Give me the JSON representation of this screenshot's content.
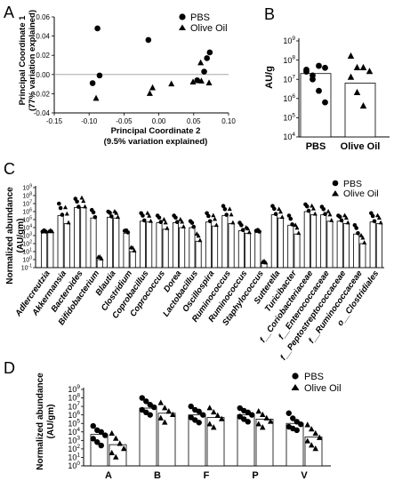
{
  "chart_data": [
    {
      "panel": "A",
      "type": "scatter",
      "xlabel": "Principal Coordinate 2",
      "xlabel2": "(9.5% variation explained)",
      "ylabel": "Principal Coordinate 1",
      "ylabel2": "(77% variation explained)",
      "xlim": [
        -0.15,
        0.1
      ],
      "ylim": [
        -0.04,
        0.06
      ],
      "xticks": [
        "-0.15",
        "-0.10",
        "-0.05",
        "0.00",
        "0.05",
        "0.10"
      ],
      "yticks": [
        "-0.04",
        "-0.02",
        "0.00",
        "0.02",
        "0.04",
        "0.06"
      ],
      "legend": "top-right",
      "series": [
        {
          "name": "PBS",
          "marker": "circle",
          "points": [
            [
              -0.088,
              0.048
            ],
            [
              -0.085,
              -0.001
            ],
            [
              -0.095,
              -0.009
            ],
            [
              -0.015,
              0.036
            ],
            [
              0.055,
              -0.006
            ],
            [
              0.065,
              0.003
            ],
            [
              0.069,
              0.017
            ],
            [
              0.073,
              0.023
            ]
          ]
        },
        {
          "name": "Olive Oil",
          "marker": "triangle",
          "points": [
            [
              -0.09,
              -0.025
            ],
            [
              -0.013,
              -0.02
            ],
            [
              -0.009,
              -0.014
            ],
            [
              0.018,
              -0.01
            ],
            [
              0.049,
              -0.008
            ],
            [
              0.061,
              -0.007
            ],
            [
              0.072,
              -0.009
            ],
            [
              0.06,
              0.012
            ]
          ]
        }
      ]
    },
    {
      "panel": "B",
      "type": "bar",
      "ylabel": "AU/g",
      "log": true,
      "ylim_exp": [
        4,
        9
      ],
      "categories": [
        "PBS",
        "Olive Oil"
      ],
      "legend": "none",
      "series": [
        {
          "name": "PBS",
          "marker": "circle",
          "bar_exp": 7.3,
          "points_exp": [
            7.4,
            7.2,
            7.7,
            7.6,
            7.5,
            7.0,
            6.4,
            5.8
          ]
        },
        {
          "name": "Olive Oil",
          "marker": "triangle",
          "bar_exp": 6.8,
          "points_exp": [
            8.2,
            7.6,
            7.6,
            7.4,
            7.1,
            6.3,
            5.6
          ]
        }
      ]
    },
    {
      "panel": "C",
      "type": "bar",
      "ylabel": "Normalized abundance",
      "ylabel2": "(AU/gm)",
      "log": true,
      "ylim_exp": [
        -1,
        9
      ],
      "legend": "top-right",
      "series_names": [
        "PBS",
        "Olive Oil"
      ],
      "categories": [
        "Adlercreutzia",
        "Akkermansia",
        "Bacteroides",
        "Bifidobacterium",
        "Blautia",
        "Clostridium",
        "Coprobacillus",
        "Coprococcus",
        "Dorea",
        "Lactobacillus",
        "Oscillospira",
        "Ruminococcus",
        "Ruminococcus",
        "Staphylococcus",
        "Sutterella",
        "Turicibacter",
        "f__Coriobacteriaceae",
        "f__Enterococcaceae",
        "f__Peptostreptococcaceae",
        "f__Ruminococcaceae",
        "o__Clostridiales"
      ],
      "bars_exp": [
        [
          3.4,
          3.4
        ],
        [
          5.5,
          4.5
        ],
        [
          6.5,
          6.5
        ],
        [
          5.2,
          0
        ],
        [
          5.3,
          5.2
        ],
        [
          3.3,
          1.0
        ],
        [
          4.8,
          4.7
        ],
        [
          4.6,
          3.8
        ],
        [
          4.6,
          4.0
        ],
        [
          4.0,
          2.3
        ],
        [
          4.7,
          4.2
        ],
        [
          5.5,
          4.5
        ],
        [
          3.6,
          3.3
        ],
        [
          3.4,
          -0.5
        ],
        [
          5.6,
          5.2
        ],
        [
          4.3,
          3.2
        ],
        [
          6.0,
          5.6
        ],
        [
          5.6,
          4.8
        ],
        [
          4.8,
          4.5
        ],
        [
          3.2,
          2.0
        ],
        [
          4.7,
          4.5
        ]
      ],
      "tops_exp": [
        [
          3.5,
          3.5
        ],
        [
          7.0,
          6.5
        ],
        [
          7.6,
          7.7
        ],
        [
          6.2,
          0.3
        ],
        [
          6.0,
          6.0
        ],
        [
          3.6,
          1.5
        ],
        [
          5.8,
          5.8
        ],
        [
          5.5,
          5.0
        ],
        [
          5.5,
          5.0
        ],
        [
          4.8,
          3.2
        ],
        [
          5.8,
          5.5
        ],
        [
          6.7,
          6.3
        ],
        [
          4.6,
          4.0
        ],
        [
          3.6,
          -0.3
        ],
        [
          6.7,
          6.3
        ],
        [
          5.5,
          4.3
        ],
        [
          6.9,
          6.7
        ],
        [
          6.6,
          6.0
        ],
        [
          5.5,
          5.5
        ],
        [
          4.3,
          3.0
        ],
        [
          5.8,
          5.5
        ]
      ]
    },
    {
      "panel": "D",
      "type": "bar",
      "ylabel": "Normalized abundance",
      "ylabel2": "(AU/gm)",
      "log": true,
      "ylim_exp": [
        0,
        9
      ],
      "legend": "top-right",
      "categories": [
        "A",
        "B",
        "F",
        "P",
        "V"
      ],
      "series": [
        {
          "name": "PBS",
          "marker": "circle",
          "bars_exp": [
            3.7,
            6.8,
            6.0,
            6.0,
            5.0
          ],
          "points_exp": [
            [
              4.7,
              4.2,
              4.0,
              3.6,
              3.2,
              2.8,
              2.4
            ],
            [
              8.0,
              7.6,
              7.2,
              6.9,
              6.6,
              6.3,
              6.0
            ],
            [
              7.0,
              6.6,
              6.4,
              6.0,
              5.7,
              5.4,
              5.1
            ],
            [
              6.8,
              6.5,
              6.3,
              6.0,
              5.8,
              5.5,
              5.2
            ],
            [
              6.2,
              5.6,
              5.2,
              4.9,
              4.6,
              4.4,
              4.2
            ]
          ]
        },
        {
          "name": "Olive Oil",
          "marker": "triangle",
          "bars_exp": [
            2.5,
            6.2,
            5.7,
            5.5,
            3.4
          ],
          "points_exp": [
            [
              3.8,
              3.2,
              2.6,
              2.0,
              1.5,
              1.0
            ],
            [
              7.4,
              6.8,
              6.4,
              6.0,
              5.6,
              5.1
            ],
            [
              6.8,
              6.3,
              5.9,
              5.5,
              4.9,
              4.5
            ],
            [
              6.4,
              6.0,
              5.6,
              5.2,
              4.9,
              4.5
            ],
            [
              4.8,
              4.3,
              3.8,
              3.3,
              2.9,
              2.4,
              2.0
            ]
          ]
        }
      ]
    }
  ]
}
